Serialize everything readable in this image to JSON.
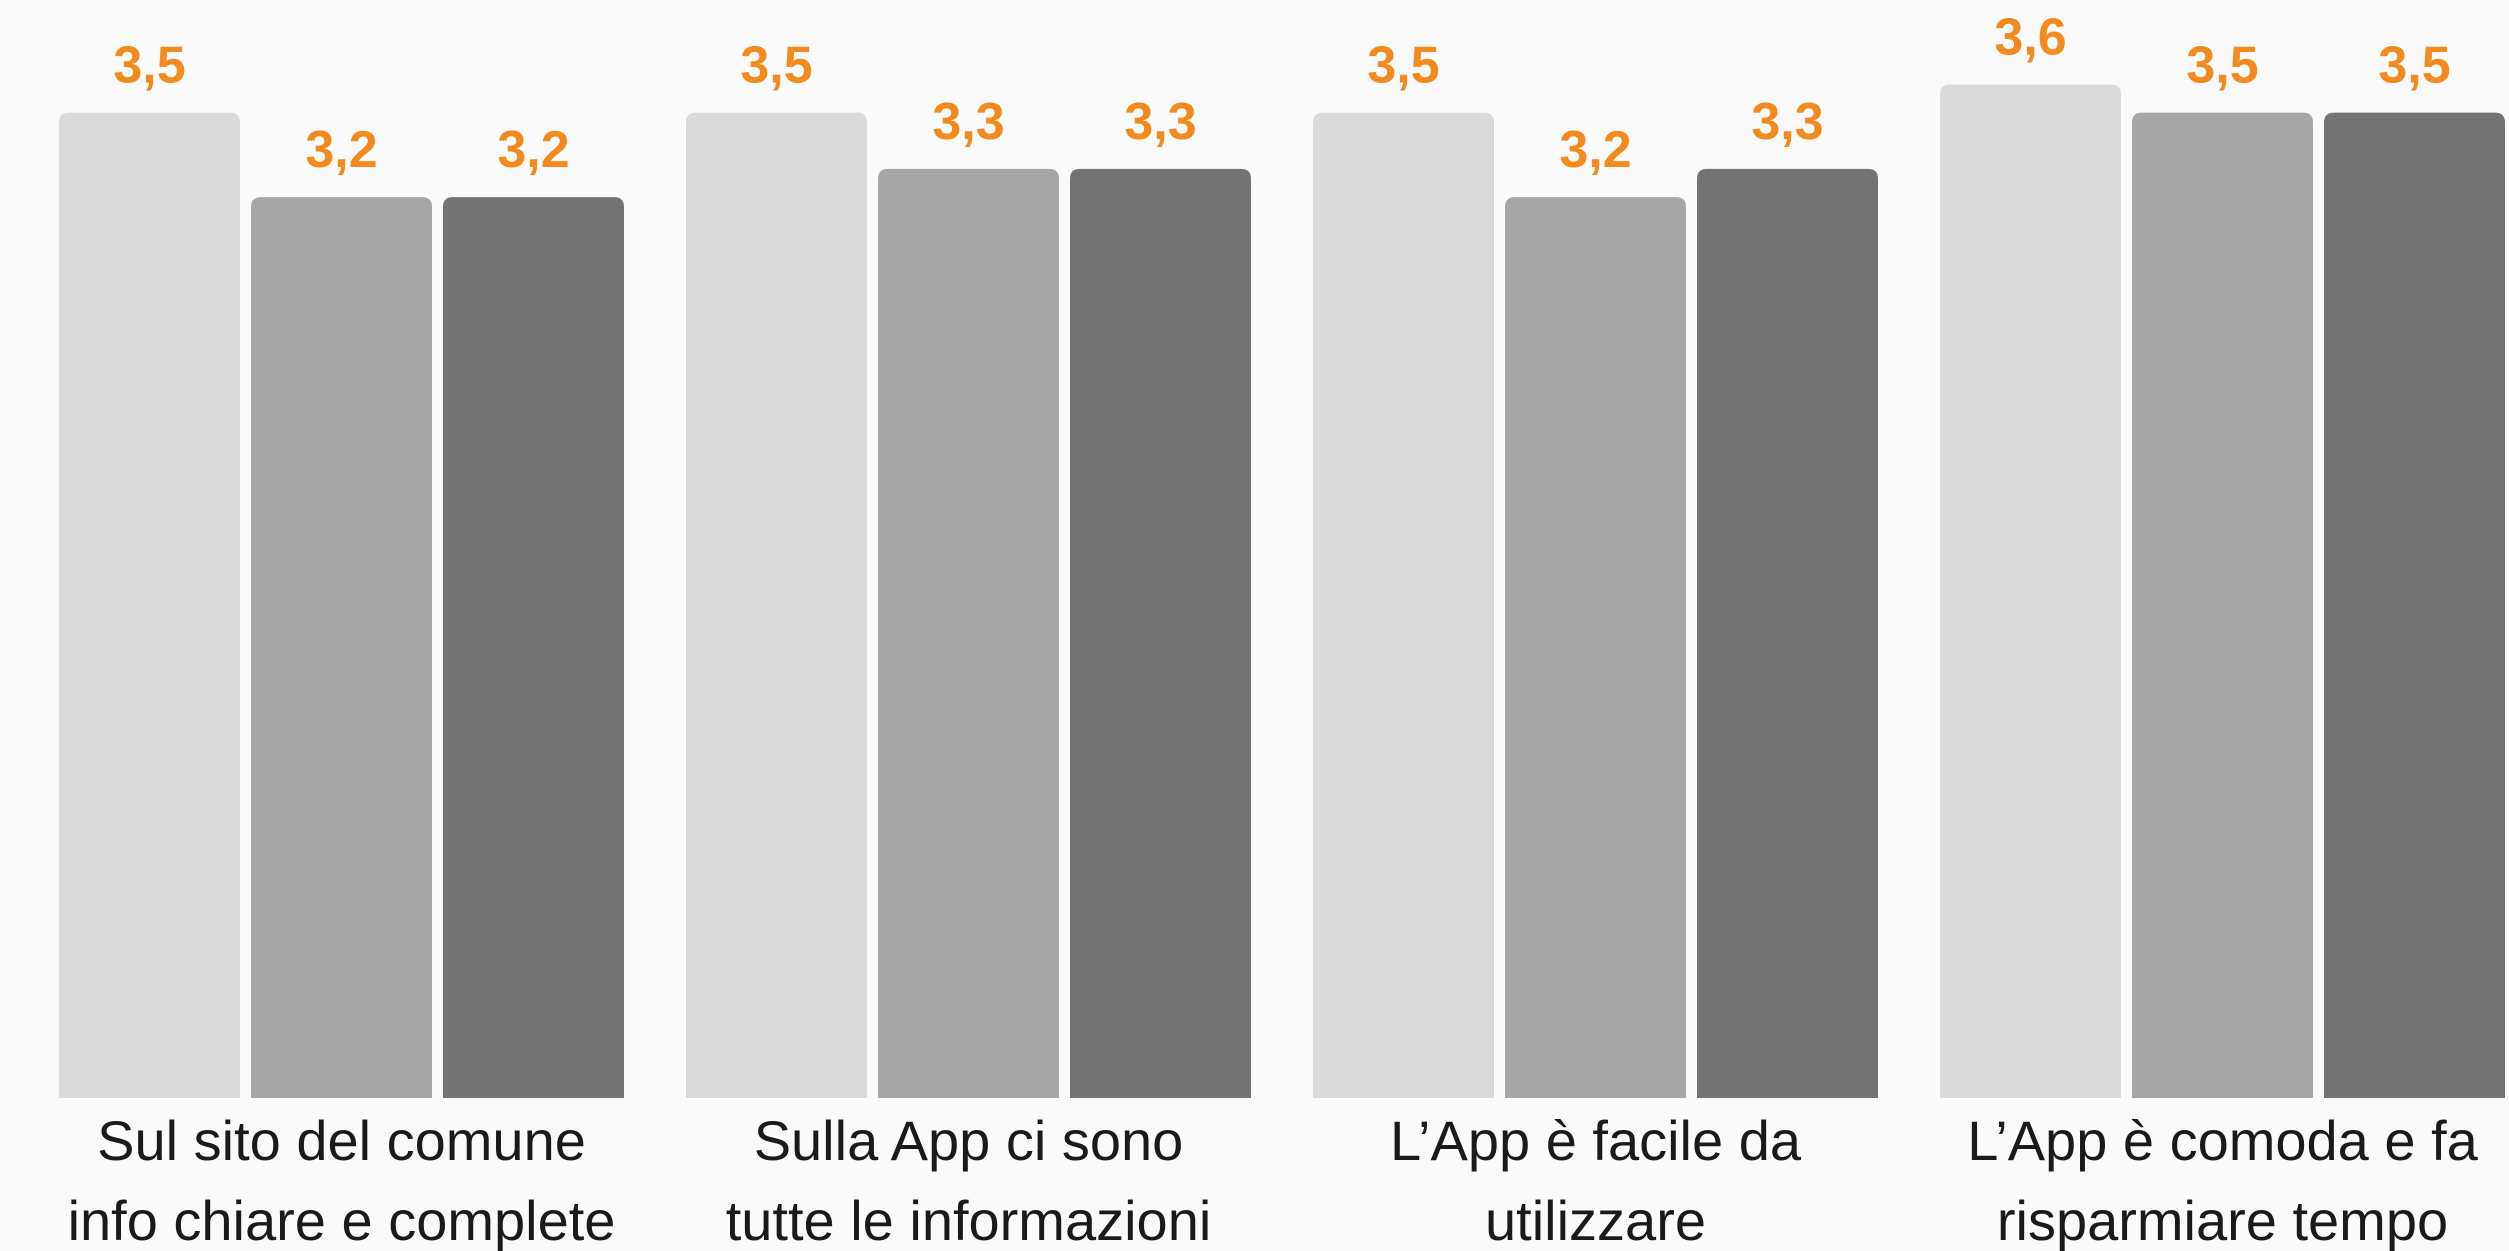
{
  "chart_data": {
    "type": "bar",
    "categories": [
      [
        "Sul sito del comune",
        "info chiare e complete"
      ],
      [
        "Sulla App ci sono",
        "tutte le informazioni"
      ],
      [
        "L’App è facile da",
        "utilizzare"
      ],
      [
        "L’App è comoda e fa",
        "risparmiare tempo"
      ]
    ],
    "series": [
      {
        "color": "#dadada",
        "values": [
          3.5,
          3.5,
          3.5,
          3.6
        ],
        "value_labels": [
          "3,5",
          "3,5",
          "3,5",
          "3,6"
        ]
      },
      {
        "color": "#a6a6a6",
        "values": [
          3.2,
          3.3,
          3.2,
          3.5
        ],
        "value_labels": [
          "3,2",
          "3,3",
          "3,2",
          "3,5"
        ]
      },
      {
        "color": "#737373",
        "values": [
          3.2,
          3.3,
          3.3,
          3.5
        ],
        "value_labels": [
          "3,2",
          "3,3",
          "3,3",
          "3,5"
        ]
      }
    ],
    "ylim": [
      0,
      3.9
    ]
  }
}
